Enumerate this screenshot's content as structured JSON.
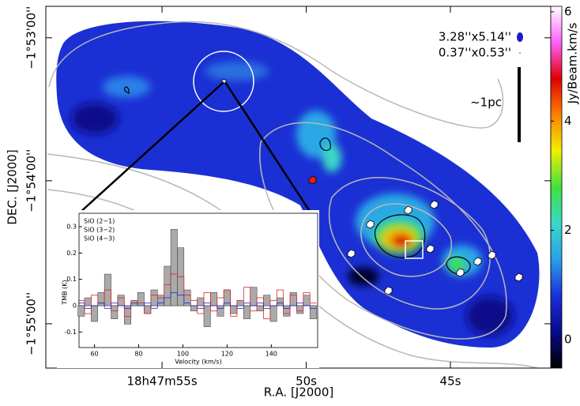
{
  "chart_data": [
    {
      "type": "map",
      "xlabel": "R.A. [J2000]",
      "ylabel": "DEC. [J2000]",
      "xlim": [
        59.03,
        41.52
      ],
      "xticks": [
        {
          "value": 55,
          "label": "18h47m55s"
        },
        {
          "value": 50,
          "label": "50s"
        },
        {
          "value": 45,
          "label": "45s"
        }
      ],
      "ylim": [
        -115.31,
        -112.78
      ],
      "yticks": [
        {
          "value": -113,
          "label": "−1°53'00''"
        },
        {
          "value": -114,
          "label": "−1°54'00''"
        },
        {
          "value": -115,
          "label": "−1°55'00''"
        }
      ],
      "colorbar_label": "Jy/Beam.km/s",
      "colorbar_lim": [
        -0.52,
        6.1
      ],
      "colorbar_ticks": [
        0,
        2,
        4,
        6
      ],
      "colormap": [
        "#000000",
        "#0a0a8c",
        "#1a2fd8",
        "#2aa0e6",
        "#3ad8c8",
        "#40e040",
        "#f0f000",
        "#ff8000",
        "#e00000",
        "#ff60ff",
        "#ffffff"
      ],
      "beam_labels": [
        {
          "text": "3.28''x5.14''",
          "color": "#1a1acc"
        },
        {
          "text": "0.37''x0.53''",
          "color": "#888888"
        }
      ],
      "scale_label": "~1pc"
    },
    {
      "type": "step",
      "xlabel": "Velocity (km/s)",
      "ylabel": "TMB (K)",
      "xlim": [
        53,
        161
      ],
      "xticks": [
        60,
        80,
        100,
        120,
        140
      ],
      "ylim": [
        -0.159,
        0.351
      ],
      "yticks": [
        -0.1,
        0,
        0.1,
        0.2,
        0.3
      ],
      "x": [
        54,
        57,
        60,
        63,
        66,
        69,
        72,
        75,
        78,
        81,
        84,
        87,
        90,
        93,
        96,
        99,
        102,
        105,
        108,
        111,
        114,
        117,
        120,
        123,
        126,
        129,
        132,
        135,
        138,
        141,
        144,
        147,
        150,
        153,
        156,
        159
      ],
      "series": [
        {
          "name": "SiO (2−1)",
          "color": "#333333",
          "fill": "#aaaaaa",
          "values": [
            -0.04,
            0.03,
            -0.06,
            0.05,
            0.12,
            -0.05,
            0.04,
            -0.07,
            0.02,
            0.05,
            -0.03,
            0.06,
            0.04,
            0.15,
            0.29,
            0.22,
            0.06,
            -0.02,
            0.03,
            -0.08,
            0.05,
            -0.04,
            0.06,
            -0.03,
            0.02,
            -0.05,
            0.07,
            -0.02,
            0.04,
            -0.06,
            0.03,
            -0.04,
            0.05,
            -0.03,
            0.04,
            -0.05
          ]
        },
        {
          "name": "SiO (3−2)",
          "color": "#dd2222",
          "values": [
            0.02,
            -0.03,
            0.04,
            0.01,
            0.06,
            -0.02,
            0.03,
            -0.04,
            0.02,
            0.01,
            -0.03,
            0.04,
            0.03,
            0.08,
            0.12,
            0.11,
            0.04,
            0.02,
            -0.03,
            0.05,
            -0.02,
            0.03,
            0.06,
            -0.04,
            0.02,
            0.07,
            -0.02,
            0.03,
            -0.05,
            0.02,
            0.06,
            -0.03,
            0.04,
            -0.02,
            0.05,
            0.01
          ]
        },
        {
          "name": "SiO (4−3)",
          "color": "#2222cc",
          "values": [
            0.01,
            -0.01,
            0.0,
            0.01,
            -0.01,
            0.01,
            0.0,
            -0.01,
            0.01,
            0.0,
            0.01,
            -0.01,
            0.01,
            0.03,
            0.05,
            0.04,
            0.01,
            0.0,
            -0.01,
            0.01,
            0.0,
            -0.01,
            0.01,
            0.0,
            -0.01,
            0.01,
            0.0,
            0.01,
            -0.01,
            0.0,
            0.01,
            -0.01,
            0.0,
            0.01,
            0.0,
            -0.01
          ]
        }
      ]
    }
  ]
}
